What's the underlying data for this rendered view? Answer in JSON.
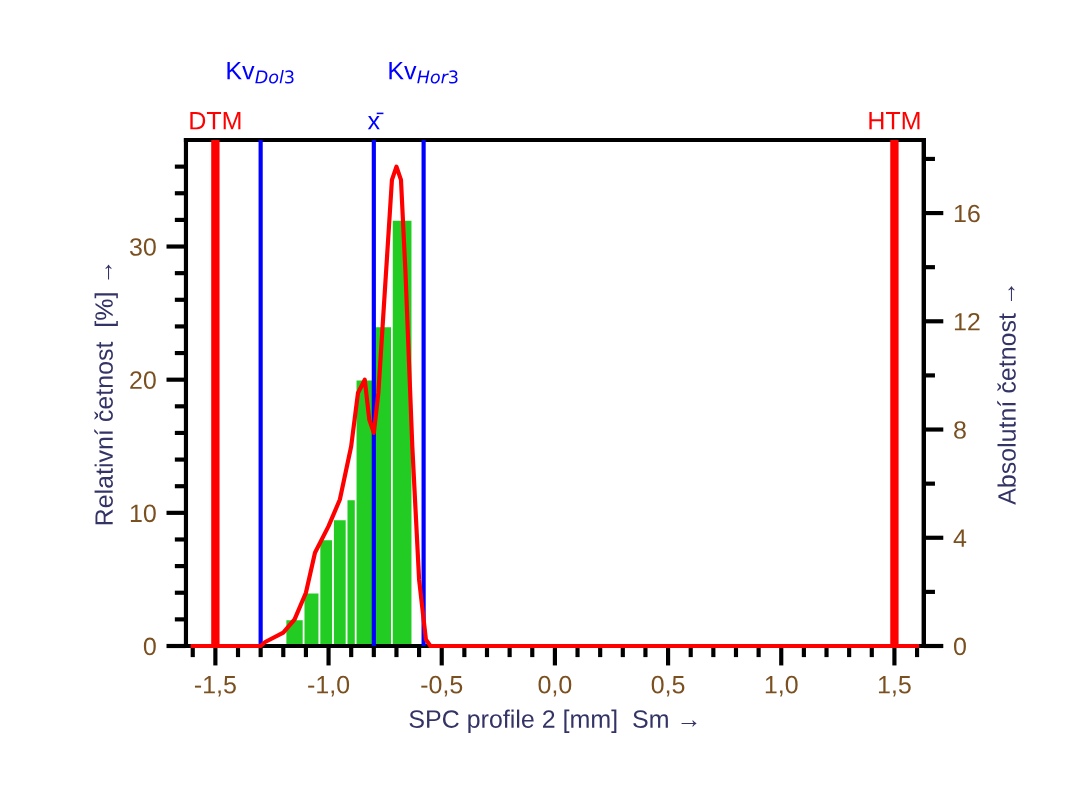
{
  "chart_data": {
    "type": "histogram",
    "xlabel": "SPC profile 2 [mm]  Sm →",
    "ylabel": "Relativní četnost  [%] →",
    "y2label": "Absolutní četnost →",
    "series": [
      {
        "color": "#22cc22",
        "bins": [
          -1.19,
          -1.11,
          -1.04,
          -0.98,
          -0.92,
          -0.88,
          -0.8,
          -0.72,
          -0.63
        ],
        "values": [
          2,
          4,
          8,
          9.5,
          11,
          20,
          24,
          32
        ]
      },
      {
        "type": "line",
        "color": "#ff0000",
        "x": [
          -1.6,
          -1.3,
          -1.28,
          -1.2,
          -1.15,
          -1.1,
          -1.06,
          -1.0,
          -0.95,
          -0.9,
          -0.87,
          -0.84,
          -0.82,
          -0.8,
          -0.78,
          -0.75,
          -0.72,
          -0.7,
          -0.68,
          -0.66,
          -0.63,
          -0.6,
          -0.57,
          -0.55,
          1.6
        ],
        "values": [
          0,
          0,
          0.3,
          1,
          2,
          4,
          7,
          9,
          11,
          15,
          19,
          20,
          17,
          16,
          19,
          27,
          35,
          36,
          35,
          28,
          15,
          5,
          0.5,
          0,
          0
        ]
      }
    ],
    "ref_lines": [
      {
        "axis": "x",
        "value": -1.5,
        "label": "DTM",
        "color": "#ff0000"
      },
      {
        "axis": "x",
        "value": -1.3,
        "label": "Kv$_{Dol3}$",
        "color": "#0000ff"
      },
      {
        "axis": "x",
        "value": -0.8,
        "label": "x̄",
        "color": "#0000ff"
      },
      {
        "axis": "x",
        "value": -0.58,
        "label": "Kv$_{Hor3}$",
        "color": "#0000ff"
      },
      {
        "axis": "x",
        "value": 1.5,
        "label": "HTM",
        "color": "#ff0000"
      }
    ],
    "xlim": [
      -1.63,
      1.63
    ],
    "xticks": [
      {
        "value": -1.6,
        "label": null
      },
      {
        "value": -1.5,
        "label": "-1,5"
      },
      {
        "value": -1.4,
        "label": null
      },
      {
        "value": -1.3,
        "label": null
      },
      {
        "value": -1.2,
        "label": null
      },
      {
        "value": -1.1,
        "label": null
      },
      {
        "value": -1.0,
        "label": "-1,0"
      },
      {
        "value": -0.9,
        "label": null
      },
      {
        "value": -0.8,
        "label": null
      },
      {
        "value": -0.7,
        "label": null
      },
      {
        "value": -0.6,
        "label": null
      },
      {
        "value": -0.5,
        "label": "-0,5"
      },
      {
        "value": -0.4,
        "label": null
      },
      {
        "value": -0.3,
        "label": null
      },
      {
        "value": -0.2,
        "label": null
      },
      {
        "value": -0.1,
        "label": null
      },
      {
        "value": 0,
        "label": "0,0"
      },
      {
        "value": 0.1,
        "label": null
      },
      {
        "value": 0.2,
        "label": null
      },
      {
        "value": 0.3,
        "label": null
      },
      {
        "value": 0.4,
        "label": null
      },
      {
        "value": 0.5,
        "label": "0,5"
      },
      {
        "value": 0.6,
        "label": null
      },
      {
        "value": 0.7,
        "label": null
      },
      {
        "value": 0.8,
        "label": null
      },
      {
        "value": 0.9,
        "label": null
      },
      {
        "value": 1.0,
        "label": "1,0"
      },
      {
        "value": 1.1,
        "label": null
      },
      {
        "value": 1.2,
        "label": null
      },
      {
        "value": 1.3,
        "label": null
      },
      {
        "value": 1.4,
        "label": null
      },
      {
        "value": 1.5,
        "label": "1,5"
      },
      {
        "value": 1.6,
        "label": null
      }
    ],
    "ylim": [
      0,
      38
    ],
    "yticks": [
      0,
      {
        "value": 2,
        "label": null
      },
      {
        "value": 4,
        "label": null
      },
      {
        "value": 6,
        "label": null
      },
      {
        "value": 8,
        "label": null
      },
      10,
      {
        "value": 12,
        "label": null
      },
      {
        "value": 14,
        "label": null
      },
      {
        "value": 16,
        "label": null
      },
      {
        "value": 18,
        "label": null
      },
      20,
      {
        "value": 22,
        "label": null
      },
      {
        "value": 24,
        "label": null
      },
      {
        "value": 26,
        "label": null
      },
      {
        "value": 28,
        "label": null
      },
      30,
      {
        "value": 32,
        "label": null
      },
      {
        "value": 34,
        "label": null
      },
      {
        "value": 36,
        "label": null
      }
    ],
    "y2lim": [
      0,
      18.7
    ],
    "y2ticks": [
      0,
      {
        "value": 2,
        "label": null
      },
      4,
      {
        "value": 6,
        "label": null
      },
      8,
      {
        "value": 10,
        "label": null
      },
      12,
      {
        "value": 14,
        "label": null
      },
      16,
      {
        "value": 18,
        "label": null
      }
    ]
  }
}
